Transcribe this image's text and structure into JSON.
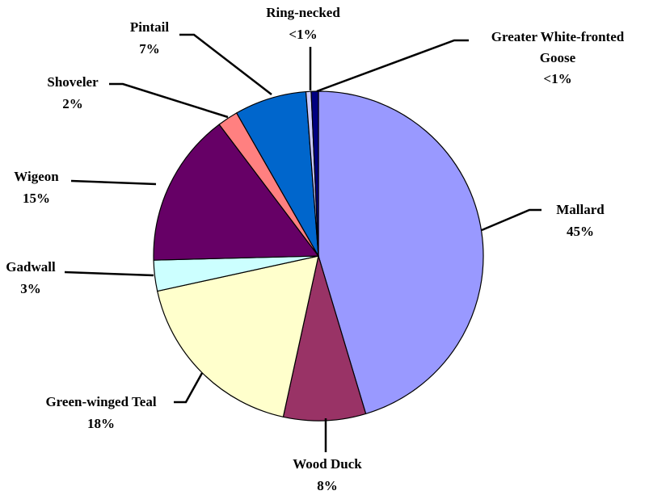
{
  "chart_data": {
    "type": "pie",
    "categories": [
      "Mallard",
      "Wood Duck",
      "Green-winged Teal",
      "Gadwall",
      "Wigeon",
      "Shoveler",
      "Pintail",
      "Ring-necked",
      "Greater White-fronted Goose"
    ],
    "values": [
      45,
      8,
      18,
      3,
      15,
      2,
      7,
      0.5,
      0.7
    ],
    "value_labels": [
      "45%",
      "8%",
      "18%",
      "3%",
      "15%",
      "2%",
      "7%",
      "<1%",
      "<1%"
    ],
    "colors": [
      "#9999ff",
      "#993366",
      "#ffffcc",
      "#ccffff",
      "#660066",
      "#ff8080",
      "#0066cc",
      "#ccccff",
      "#000080"
    ]
  }
}
